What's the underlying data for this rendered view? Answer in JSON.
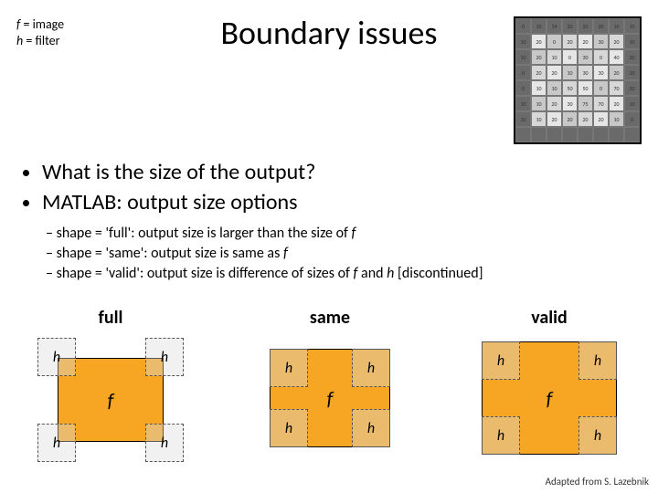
{
  "legend": {
    "l1a": "f",
    "l1b": " = image",
    "l2a": "h",
    "l2b": " = filter"
  },
  "title": "Boundary issues",
  "bullets": {
    "b1": "What is the size of the output?",
    "b2": "MATLAB: output size options"
  },
  "subs": {
    "s1a": "shape = 'full': output size is larger than the size of ",
    "s1b": "f",
    "s2a": "shape = 'same': output size is same as ",
    "s2b": "f",
    "s3a": "shape = 'valid': output size is difference of sizes of ",
    "s3b": "f",
    "s3c": " and ",
    "s3d": "h",
    "s3e": " [discontinued]"
  },
  "labels": {
    "f": "f",
    "h": "h",
    "full": "full",
    "same": "same",
    "valid": "valid"
  },
  "credit": "Adapted from S. Lazebnik",
  "colors": {
    "f_fill": "#f6a623",
    "h_dash": "#555555"
  },
  "layout": {
    "full": {
      "f": {
        "l": 32,
        "t": 28,
        "w": 116,
        "h": 92
      },
      "h": [
        {
          "l": 10,
          "t": 6
        },
        {
          "l": 128,
          "t": 6
        },
        {
          "l": 10,
          "t": 100
        },
        {
          "l": 128,
          "t": 100
        }
      ]
    },
    "same": {
      "f": {
        "l": 24,
        "t": 18,
        "w": 132,
        "h": 108
      },
      "h": [
        {
          "l": 24,
          "t": 18
        },
        {
          "l": 114,
          "t": 18
        },
        {
          "l": 24,
          "t": 84
        },
        {
          "l": 114,
          "t": 84
        }
      ]
    },
    "valid": {
      "f": {
        "l": 16,
        "t": 10,
        "w": 148,
        "h": 124
      },
      "h": [
        {
          "l": 16,
          "t": 10
        },
        {
          "l": 122,
          "t": 10
        },
        {
          "l": 16,
          "t": 92
        },
        {
          "l": 122,
          "t": 92
        }
      ]
    }
  },
  "grid": {
    "border_vals": [
      0,
      10,
      14,
      20,
      20,
      20,
      10,
      10,
      10,
      20,
      0,
      20,
      20,
      30,
      20,
      10,
      10,
      20,
      10,
      0,
      30,
      0,
      40,
      20,
      0,
      20,
      20,
      10,
      30,
      30,
      20,
      20,
      0,
      10,
      10,
      50,
      50,
      0,
      70,
      20,
      10,
      10,
      20,
      30,
      75,
      70,
      20,
      10,
      10,
      10,
      20,
      20,
      20,
      20,
      10,
      0,
      -1,
      -1,
      -1,
      -1,
      -1,
      -1,
      -1,
      -1
    ]
  }
}
